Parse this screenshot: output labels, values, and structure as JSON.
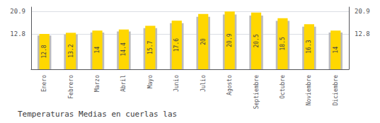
{
  "chart_data": {
    "type": "bar",
    "title": "Temperaturas Medias en cuerlas las",
    "categories": [
      "Enero",
      "Febrero",
      "Marzo",
      "Abril",
      "Mayo",
      "Junio",
      "Julio",
      "Agosto",
      "Septiembre",
      "Octubre",
      "Noviembre",
      "Diciembre"
    ],
    "series": [
      {
        "color": "#BBBBBB",
        "values": [
          12.2,
          12.6,
          13.3,
          13.7,
          14.9,
          16.7,
          19.0,
          19.8,
          19.4,
          17.5,
          15.4,
          13.3
        ]
      },
      {
        "color": "#FFD700",
        "data_labels": true,
        "values": [
          12.8,
          13.2,
          14.0,
          14.4,
          15.7,
          17.6,
          20.0,
          20.9,
          20.5,
          18.5,
          16.3,
          14.0
        ]
      }
    ],
    "ylim": [
      0,
      22.5
    ],
    "yticks": [
      12.8,
      20.9
    ],
    "y2lim": [
      0,
      22.5
    ],
    "y2ticks": [
      12.8,
      20.9
    ],
    "grid": true
  }
}
